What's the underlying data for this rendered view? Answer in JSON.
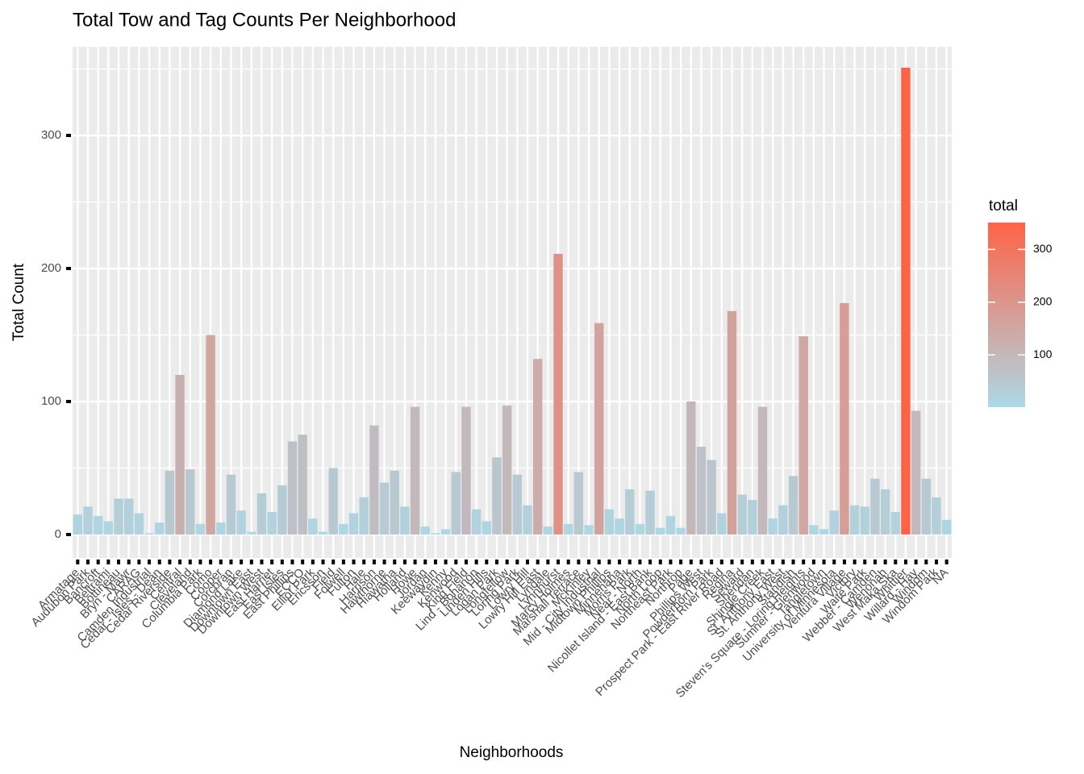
{
  "chart_data": {
    "type": "bar",
    "title": "Total Tow and Tag Counts Per Neighborhood",
    "x_label": "Neighborhoods",
    "y_label": "Total Count",
    "categories": [
      "Armatage",
      "Audubon Park",
      "Bancroft",
      "Beltrami",
      "Bottineau",
      "Bryn - Mawr",
      "CARAG",
      "Camden Industrial",
      "Cedar - Isles - Dean",
      "Cedar Riverside",
      "Central",
      "Cleveland",
      "Columbia Park",
      "Como",
      "Cooper",
      "Corcoran",
      "Diamond Lake",
      "Downtown East",
      "Downtown West",
      "East Harriet",
      "East Isles",
      "East Phillips",
      "ECCO",
      "Elliot Park",
      "Ericsson",
      "Field",
      "Folwell",
      "Fulton",
      "Hale",
      "Harrison",
      "Hawthorne",
      "Hiawatha",
      "Holland",
      "Howe",
      "Jordan",
      "Keewaydin",
      "Kenny",
      "Kenwood",
      "King Field",
      "Lind - Bohanon",
      "Linden Hills",
      "Logan Park",
      "Longfellow",
      "Loring Park",
      "Lowry Hill",
      "Lowry Hill East",
      "Lyndale",
      "Lynnhurst",
      "Marcy Holmes",
      "Marshall Terrace",
      "McKinley",
      "Mid - City Industrial",
      "Midtown Phillips",
      "Minnehaha",
      "Morris Park",
      "Near - North",
      "Nicollet Island - East Bank",
      "North Loop",
      "Northeast Park",
      "Northrop",
      "Page",
      "Phillips West",
      "Powderhorn Park",
      "Prospect Park - East River Road",
      "Regina",
      "Seward",
      "Sheridan",
      "Shingle Creek",
      "St. Anthony East",
      "St. Anthony West",
      "Standish",
      "Steven's Square - Loring Heights",
      "Sumner - Glenwood",
      "Tangletown",
      "University of Minnesota",
      "Ventura Village",
      "Victory",
      "Waite Park",
      "Webber - Camden",
      "Wenonah",
      "West Maka Ska",
      "Whittier",
      "Willard - Hay",
      "Windom",
      "Windom Park",
      "NA"
    ],
    "values": [
      15,
      21,
      14,
      10,
      27,
      27,
      16,
      1,
      9,
      48,
      120,
      49,
      8,
      150,
      9,
      45,
      18,
      2,
      31,
      17,
      37,
      70,
      75,
      12,
      2,
      50,
      8,
      16,
      28,
      82,
      39,
      48,
      21,
      96,
      6,
      1,
      4,
      47,
      96,
      19,
      10,
      58,
      97,
      45,
      22,
      132,
      6,
      211,
      8,
      47,
      7,
      159,
      19,
      12,
      34,
      8,
      33,
      5,
      14,
      5,
      100,
      66,
      56,
      16,
      168,
      30,
      26,
      96,
      12,
      22,
      44,
      149,
      7,
      4,
      18,
      174,
      22,
      21,
      42,
      34,
      17,
      351,
      93,
      42,
      28,
      11
    ],
    "ylim": [
      -17.6,
      366.7
    ],
    "yticks": [
      0,
      100,
      200,
      300
    ],
    "grid": true,
    "legend_title": "total",
    "legend_ticks": [
      100,
      200,
      300
    ],
    "color_low": "#add8e6",
    "color_high": "#ff6347"
  }
}
